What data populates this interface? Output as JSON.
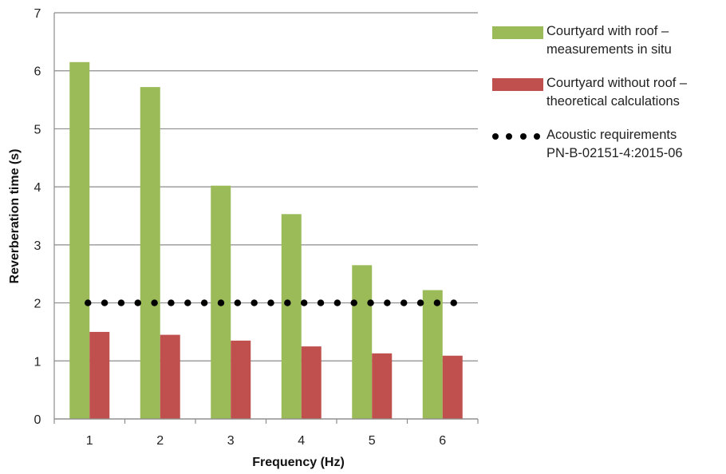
{
  "chart_data": {
    "type": "bar",
    "categories": [
      "1",
      "2",
      "3",
      "4",
      "5",
      "6"
    ],
    "xlabel": "Frequency (Hz)",
    "ylabel": "Reverberation time (s)",
    "ylim": [
      0,
      7
    ],
    "yticks": [
      "0",
      "1",
      "2",
      "3",
      "4",
      "5",
      "6",
      "7"
    ],
    "grid": true,
    "legend_position": "right",
    "series": [
      {
        "name_lines": [
          "Courtyard with roof –",
          "measurements in situ"
        ],
        "type": "bar",
        "color": "#9BBB59",
        "values": [
          6.15,
          5.72,
          4.02,
          3.53,
          2.65,
          2.22
        ]
      },
      {
        "name_lines": [
          "Courtyard without roof –",
          "theoretical calculations"
        ],
        "type": "bar",
        "color": "#C0504D",
        "values": [
          1.5,
          1.45,
          1.35,
          1.25,
          1.13,
          1.09
        ]
      },
      {
        "name_lines": [
          "Acoustic requirements",
          "PN-B-02151-4:2015-06"
        ],
        "type": "line",
        "style": "dotted",
        "color": "#000000",
        "values": [
          2.0,
          2.0,
          2.0,
          2.0,
          2.0,
          2.0
        ]
      }
    ]
  }
}
